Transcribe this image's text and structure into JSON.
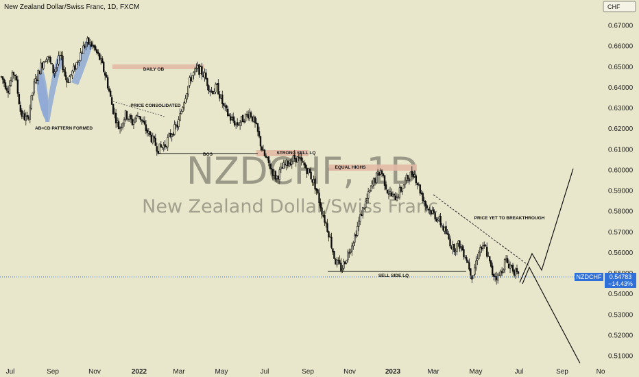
{
  "header": {
    "title": "New Zealand Dollar/Swiss Franc, 1D, FXCM"
  },
  "currency_button": "CHF",
  "watermark": {
    "symbol": "NZDCHF, 1D",
    "name": "New Zealand Dollar/Swiss Franc"
  },
  "current_price": {
    "symbol": "NZDCHF",
    "price": "0.54783",
    "change": "−14.43%"
  },
  "colors": {
    "background": "#e8e6cb",
    "candle": "#111111",
    "zone": "#e2b9a5",
    "highlight": "#8fa9d6",
    "price_line": "#3a7bd5",
    "price_label_bg": "#2f6fd8"
  },
  "chart_data": {
    "type": "candlestick",
    "title": "New Zealand Dollar/Swiss Franc, 1D, FXCM",
    "x_tick_labels": [
      "Jul",
      "Sep",
      "Nov",
      "2022",
      "Mar",
      "May",
      "Jul",
      "Sep",
      "Nov",
      "2023",
      "Mar",
      "May",
      "Jul",
      "Sep",
      "No"
    ],
    "y_tick_labels": [
      "0.51000",
      "0.52000",
      "0.53000",
      "0.54000",
      "0.55000",
      "0.56000",
      "0.57000",
      "0.58000",
      "0.59000",
      "0.60000",
      "0.61000",
      "0.62000",
      "0.63000",
      "0.64000",
      "0.65000",
      "0.66000",
      "0.67000"
    ],
    "ylim": [
      0.5046,
      0.682
    ],
    "grid": false,
    "close_path": [
      [
        "Jul 2021",
        0.645
      ],
      [
        "Jul 2021",
        0.639
      ],
      [
        "Aug 2021",
        0.648
      ],
      [
        "Aug 2021",
        0.627
      ],
      [
        "Aug 2021",
        0.624
      ],
      [
        "Aug 2021",
        0.641
      ],
      [
        "Aug 2021",
        0.65
      ],
      [
        "Sep 2021",
        0.656
      ],
      [
        "Sep 2021",
        0.647
      ],
      [
        "Sep 2021",
        0.655
      ],
      [
        "Oct 2021",
        0.643
      ],
      [
        "Oct 2021",
        0.648
      ],
      [
        "Oct 2021",
        0.656
      ],
      [
        "Oct 2021",
        0.662
      ],
      [
        "Nov 2021",
        0.66
      ],
      [
        "Nov 2021",
        0.654
      ],
      [
        "Nov 2021",
        0.645
      ],
      [
        "Nov 2021",
        0.63
      ],
      [
        "Dec 2021",
        0.62
      ],
      [
        "Dec 2021",
        0.627
      ],
      [
        "Dec 2021",
        0.623
      ],
      [
        "Jan 2022",
        0.627
      ],
      [
        "Jan 2022",
        0.62
      ],
      [
        "Jan 2022",
        0.615
      ],
      [
        "Jan 2022",
        0.61
      ],
      [
        "Feb 2022",
        0.612
      ],
      [
        "Feb 2022",
        0.618
      ],
      [
        "Feb 2022",
        0.622
      ],
      [
        "Mar 2022",
        0.635
      ],
      [
        "Mar 2022",
        0.645
      ],
      [
        "Mar 2022",
        0.649
      ],
      [
        "Apr 2022",
        0.646
      ],
      [
        "Apr 2022",
        0.638
      ],
      [
        "Apr 2022",
        0.64
      ],
      [
        "May 2022",
        0.63
      ],
      [
        "May 2022",
        0.625
      ],
      [
        "May 2022",
        0.622
      ],
      [
        "Jun 2022",
        0.625
      ],
      [
        "Jun 2022",
        0.628
      ],
      [
        "Jun 2022",
        0.62
      ],
      [
        "Jun 2022",
        0.608
      ],
      [
        "Jul 2022",
        0.602
      ],
      [
        "Jul 2022",
        0.596
      ],
      [
        "Jul 2022",
        0.601
      ],
      [
        "Aug 2022",
        0.604
      ],
      [
        "Aug 2022",
        0.606
      ],
      [
        "Aug 2022",
        0.603
      ],
      [
        "Aug 2022",
        0.599
      ],
      [
        "Sep 2022",
        0.592
      ],
      [
        "Sep 2022",
        0.58
      ],
      [
        "Sep 2022",
        0.57
      ],
      [
        "Oct 2022",
        0.556
      ],
      [
        "Oct 2022",
        0.552
      ],
      [
        "Oct 2022",
        0.56
      ],
      [
        "Nov 2022",
        0.568
      ],
      [
        "Nov 2022",
        0.579
      ],
      [
        "Nov 2022",
        0.587
      ],
      [
        "Dec 2022",
        0.595
      ],
      [
        "Dec 2022",
        0.6
      ],
      [
        "Dec 2022",
        0.59
      ],
      [
        "Jan 2023",
        0.586
      ],
      [
        "Jan 2023",
        0.59
      ],
      [
        "Jan 2023",
        0.596
      ],
      [
        "Feb 2023",
        0.599
      ],
      [
        "Feb 2023",
        0.59
      ],
      [
        "Feb 2023",
        0.582
      ],
      [
        "Mar 2023",
        0.579
      ],
      [
        "Mar 2023",
        0.575
      ],
      [
        "Mar 2023",
        0.569
      ],
      [
        "Apr 2023",
        0.562
      ],
      [
        "Apr 2023",
        0.564
      ],
      [
        "Apr 2023",
        0.558
      ],
      [
        "May 2023",
        0.548
      ],
      [
        "May 2023",
        0.562
      ],
      [
        "May 2023",
        0.562
      ],
      [
        "Jun 2023",
        0.55
      ],
      [
        "Jun 2023",
        0.548
      ],
      [
        "Jun 2023",
        0.556
      ],
      [
        "Jun 2023",
        0.553
      ],
      [
        "Jul 2023",
        0.5478
      ]
    ],
    "annotations": [
      {
        "text": "AB=CD PATTERN FORMED"
      },
      {
        "text": "DAILY OB"
      },
      {
        "text": "PRICE CONSOLIDATED"
      },
      {
        "text": "BOS"
      },
      {
        "text": "STRONG SELL LQ"
      },
      {
        "text": "EQUAL HIGHS"
      },
      {
        "text": "SELL SIDE LQ"
      },
      {
        "text": "PRICE YET TO BREAKTHROUGH"
      }
    ],
    "last_price": 0.54783
  }
}
